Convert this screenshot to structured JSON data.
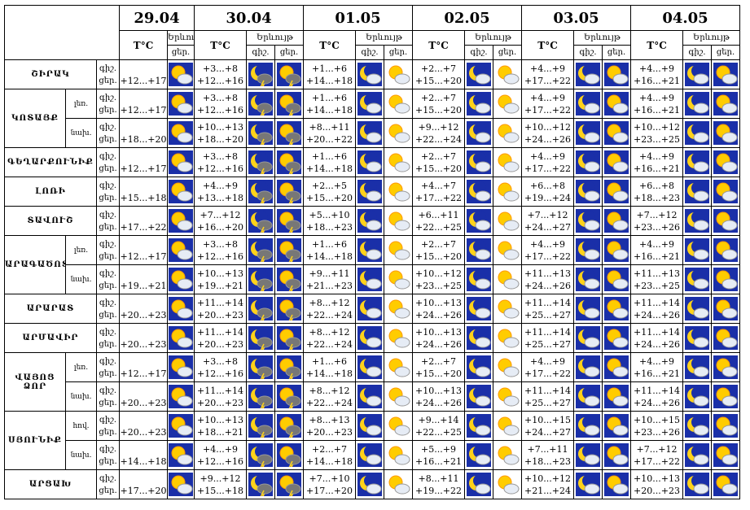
{
  "header": {
    "dates": [
      "29.04",
      "30.04",
      "01.05",
      "02.05",
      "03.05",
      "04.05"
    ],
    "temp_label": "T°C",
    "phenomenon_label": "Երևույթ",
    "night": "գիշ.",
    "day": "ցեր."
  },
  "regions": [
    {
      "name": "ՇԻՐԱԿ",
      "rows": [
        {
          "today": "+12...+17",
          "forecast": [
            [
              "+3...+8",
              "+12...+16"
            ],
            [
              "+1...+6",
              "+14...+18"
            ],
            [
              "+2...+7",
              "+15...+20"
            ],
            [
              "+4...+9",
              "+17...+22"
            ],
            [
              "+4...+9",
              "+16...+21"
            ]
          ]
        }
      ]
    },
    {
      "name": "ԿՈՏԱՅՔ",
      "rows": [
        {
          "zone": "լեռ.",
          "today": "+12...+17",
          "forecast": [
            [
              "+3...+8",
              "+12...+16"
            ],
            [
              "+1...+6",
              "+14...+18"
            ],
            [
              "+2...+7",
              "+15...+20"
            ],
            [
              "+4...+9",
              "+17...+22"
            ],
            [
              "+4...+9",
              "+16...+21"
            ]
          ]
        },
        {
          "zone": "նախ.",
          "today": "+18...+20",
          "forecast": [
            [
              "+10...+13",
              "+18...+20"
            ],
            [
              "+8...+11",
              "+20...+22"
            ],
            [
              "+9...+12",
              "+22...+24"
            ],
            [
              "+10...+12",
              "+24...+26"
            ],
            [
              "+10...+12",
              "+23...+25"
            ]
          ]
        }
      ]
    },
    {
      "name": "ԳԵՂԱՐՔՈՒՆԻՔ",
      "rows": [
        {
          "today": "+12...+17",
          "forecast": [
            [
              "+3...+8",
              "+12...+16"
            ],
            [
              "+1...+6",
              "+14...+18"
            ],
            [
              "+2...+7",
              "+15...+20"
            ],
            [
              "+4...+9",
              "+17...+22"
            ],
            [
              "+4...+9",
              "+16...+21"
            ]
          ]
        }
      ]
    },
    {
      "name": "ԼՈՌԻ",
      "rows": [
        {
          "today": "+15...+18",
          "forecast": [
            [
              "+4...+9",
              "+13...+18"
            ],
            [
              "+2...+5",
              "+15...+20"
            ],
            [
              "+4...+7",
              "+17...+22"
            ],
            [
              "+6...+8",
              "+19...+24"
            ],
            [
              "+6...+8",
              "+18...+23"
            ]
          ]
        }
      ]
    },
    {
      "name": "ՏԱՎՈՒՇ",
      "rows": [
        {
          "today": "+17...+22",
          "forecast": [
            [
              "+7...+12",
              "+16...+20"
            ],
            [
              "+5...+10",
              "+18...+23"
            ],
            [
              "+6...+11",
              "+22...+25"
            ],
            [
              "+7...+12",
              "+24...+27"
            ],
            [
              "+7...+12",
              "+23...+26"
            ]
          ]
        }
      ]
    },
    {
      "name": "ԱՐԱԳԱԾՈՏՆ",
      "rows": [
        {
          "zone": "լեռ.",
          "today": "+12...+17",
          "forecast": [
            [
              "+3...+8",
              "+12...+16"
            ],
            [
              "+1...+6",
              "+14...+18"
            ],
            [
              "+2...+7",
              "+15...+20"
            ],
            [
              "+4...+9",
              "+17...+22"
            ],
            [
              "+4...+9",
              "+16...+21"
            ]
          ]
        },
        {
          "zone": "նախ.",
          "today": "+19...+21",
          "forecast": [
            [
              "+10...+13",
              "+19...+21"
            ],
            [
              "+9...+11",
              "+21...+23"
            ],
            [
              "+10...+12",
              "+23...+25"
            ],
            [
              "+11...+13",
              "+24...+26"
            ],
            [
              "+11...+13",
              "+23...+25"
            ]
          ]
        }
      ]
    },
    {
      "name": "ԱՐԱՐԱՏ",
      "rows": [
        {
          "today": "+20...+23",
          "forecast": [
            [
              "+11...+14",
              "+20...+23"
            ],
            [
              "+8...+12",
              "+22...+24"
            ],
            [
              "+10...+13",
              "+24...+26"
            ],
            [
              "+11...+14",
              "+25...+27"
            ],
            [
              "+11...+14",
              "+24...+26"
            ]
          ]
        }
      ]
    },
    {
      "name": "ԱՐՄԱՎԻՐ",
      "rows": [
        {
          "today": "+20...+23",
          "forecast": [
            [
              "+11...+14",
              "+20...+23"
            ],
            [
              "+8...+12",
              "+22...+24"
            ],
            [
              "+10...+13",
              "+24...+26"
            ],
            [
              "+11...+14",
              "+25...+27"
            ],
            [
              "+11...+14",
              "+24...+26"
            ]
          ]
        }
      ]
    },
    {
      "name": "ՎԱՅՈՑ ՁՈՐ",
      "rows": [
        {
          "zone": "լեռ.",
          "today": "+12...+17",
          "forecast": [
            [
              "+3...+8",
              "+12...+16"
            ],
            [
              "+1...+6",
              "+14...+18"
            ],
            [
              "+2...+7",
              "+15...+20"
            ],
            [
              "+4...+9",
              "+17...+22"
            ],
            [
              "+4...+9",
              "+16...+21"
            ]
          ]
        },
        {
          "zone": "նախ.",
          "today": "+20...+23",
          "forecast": [
            [
              "+11...+14",
              "+20...+23"
            ],
            [
              "+8...+12",
              "+22...+24"
            ],
            [
              "+10...+13",
              "+24...+26"
            ],
            [
              "+11...+14",
              "+25...+27"
            ],
            [
              "+11...+14",
              "+24...+26"
            ]
          ]
        }
      ]
    },
    {
      "name": "ՍՅՈՒՆԻՔ",
      "rows": [
        {
          "zone": "հով.",
          "today": "+20...+23",
          "forecast": [
            [
              "+10...+13",
              "+18...+21"
            ],
            [
              "+8...+13",
              "+20...+23"
            ],
            [
              "+9...+14",
              "+22...+25"
            ],
            [
              "+10...+15",
              "+24...+27"
            ],
            [
              "+10...+15",
              "+23...+26"
            ]
          ]
        },
        {
          "zone": "նախ.",
          "today": "+14...+18",
          "forecast": [
            [
              "+4...+9",
              "+12...+16"
            ],
            [
              "+2...+7",
              "+14...+18"
            ],
            [
              "+5...+9",
              "+16...+21"
            ],
            [
              "+7...+11",
              "+18...+23"
            ],
            [
              "+7...+12",
              "+17...+22"
            ]
          ]
        }
      ]
    },
    {
      "name": "ԱՐՑԱԽ",
      "rows": [
        {
          "today": "+17...+20",
          "forecast": [
            [
              "+9...+12",
              "+15...+18"
            ],
            [
              "+7...+10",
              "+17...+20"
            ],
            [
              "+8...+11",
              "+19...+22"
            ],
            [
              "+10...+12",
              "+21...+24"
            ],
            [
              "+10...+13",
              "+20...+23"
            ]
          ]
        }
      ]
    }
  ]
}
